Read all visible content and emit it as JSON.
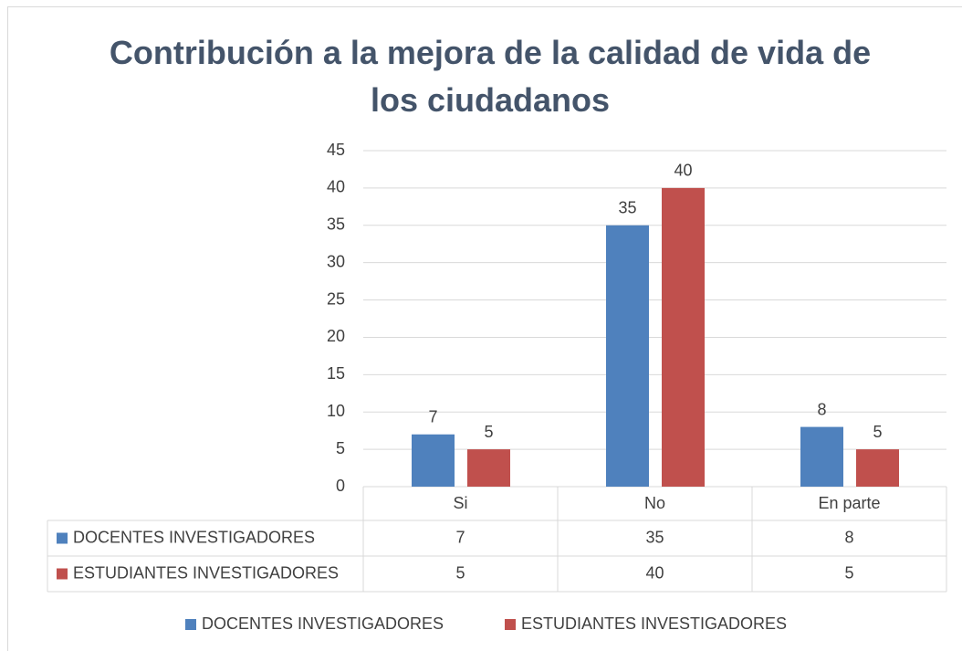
{
  "chart_data": {
    "type": "bar",
    "title": "Contribución a la mejora de la calidad de vida de los ciudadanos",
    "categories": [
      "Si",
      "No",
      "En parte"
    ],
    "series": [
      {
        "name": "DOCENTES INVESTIGADORES",
        "color": "#4f81bd",
        "values": [
          7,
          35,
          8
        ]
      },
      {
        "name": "ESTUDIANTES INVESTIGADORES",
        "color": "#c0504d",
        "values": [
          5,
          40,
          5
        ]
      }
    ],
    "ylim": [
      0,
      45
    ],
    "yticks": [
      0,
      5,
      10,
      15,
      20,
      25,
      30,
      35,
      40,
      45
    ],
    "grid": true,
    "legend": "bottom",
    "data_table": true
  }
}
